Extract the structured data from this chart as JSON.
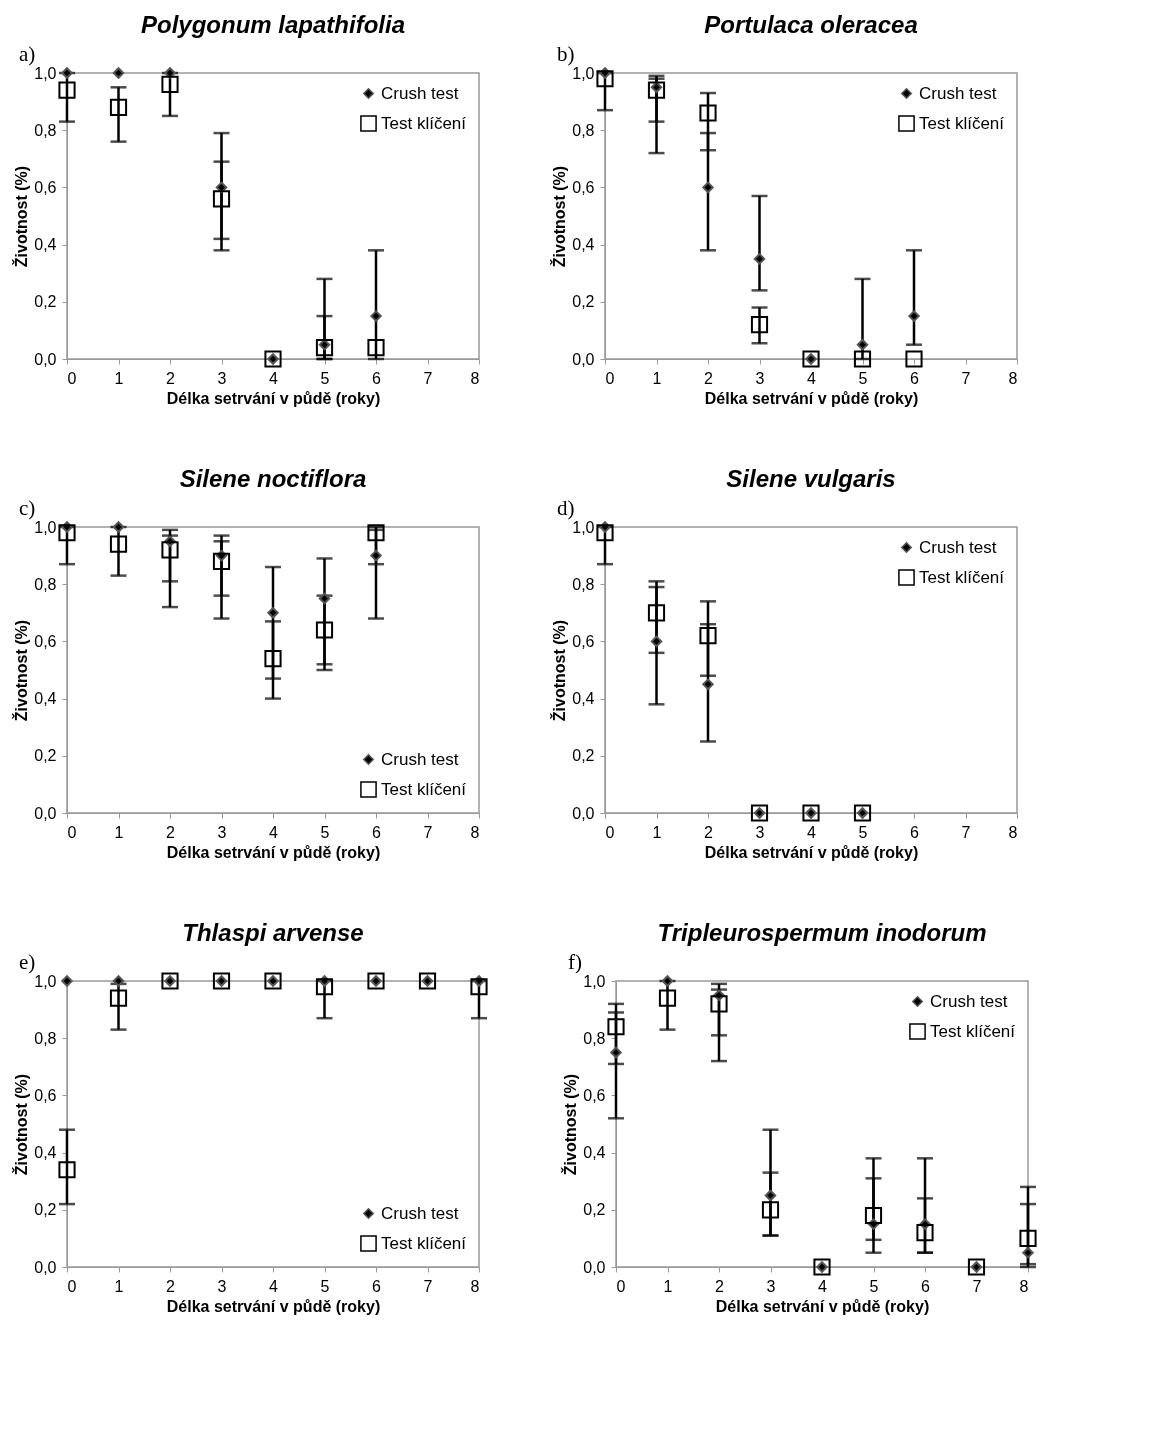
{
  "chart_data": [
    {
      "type": "scatter",
      "title": "Polygonum lapathifolia",
      "annotations": [
        "a)"
      ],
      "xlabel": "Délka setrvání v půdě (roky)",
      "ylabel": "Životnost (%)",
      "x": [
        0,
        1,
        2,
        3,
        4,
        5,
        6
      ],
      "xlim": [
        0,
        8
      ],
      "xticks": [
        0,
        1,
        2,
        3,
        4,
        5,
        6,
        7,
        8
      ],
      "ylim": [
        0,
        1
      ],
      "yticks": [
        {
          "value": 0,
          "label": "0,0"
        },
        {
          "value": 0.2,
          "label": "0,2"
        },
        {
          "value": 0.4,
          "label": "0,4"
        },
        {
          "value": 0.6,
          "label": "0,6"
        },
        {
          "value": 0.8,
          "label": "0,8"
        },
        {
          "value": 1,
          "label": "1,0"
        }
      ],
      "legend": "top right",
      "series": [
        {
          "name": "Crush test",
          "color": "#000000",
          "marker": "diamond",
          "values": [
            1.0,
            1.0,
            1.0,
            0.6,
            0.0,
            0.05,
            0.15
          ],
          "errors": [
            null,
            null,
            null,
            [
              0.38,
              0.79
            ],
            null,
            [
              0.0,
              0.28
            ],
            [
              0.0,
              0.38
            ]
          ]
        },
        {
          "name": "Test klíčení",
          "color": "#000000",
          "marker": "square",
          "values": [
            0.94,
            0.88,
            0.96,
            0.56,
            0.0,
            0.04,
            0.04
          ],
          "errors": [
            [
              0.83,
              1.0
            ],
            [
              0.76,
              0.95
            ],
            [
              0.85,
              1.0
            ],
            [
              0.42,
              0.69
            ],
            null,
            [
              0.0,
              0.15
            ],
            null
          ]
        }
      ]
    },
    {
      "type": "scatter",
      "title": "Portulaca oleracea",
      "annotations": [
        "b)"
      ],
      "xlabel": "Délka setrvání v půdě (roky)",
      "ylabel": "Životnost (%)",
      "x": [
        0,
        1,
        2,
        3,
        4,
        5,
        6
      ],
      "xlim": [
        0,
        8
      ],
      "xticks": [
        0,
        1,
        2,
        3,
        4,
        5,
        6,
        7,
        8
      ],
      "ylim": [
        0,
        1
      ],
      "yticks": [
        {
          "value": 0,
          "label": "0,0"
        },
        {
          "value": 0.2,
          "label": "0,2"
        },
        {
          "value": 0.4,
          "label": "0,4"
        },
        {
          "value": 0.6,
          "label": "0,6"
        },
        {
          "value": 0.8,
          "label": "0,8"
        },
        {
          "value": 1,
          "label": "1,0"
        }
      ],
      "legend": "top right",
      "series": [
        {
          "name": "Crush test",
          "color": "#000000",
          "marker": "diamond",
          "values": [
            1.0,
            0.95,
            0.6,
            0.35,
            0.0,
            0.05,
            0.15
          ],
          "errors": [
            null,
            [
              0.72,
              0.99
            ],
            [
              0.38,
              0.79
            ],
            [
              0.24,
              0.57
            ],
            null,
            [
              0.0,
              0.28
            ],
            [
              0.05,
              0.38
            ]
          ]
        },
        {
          "name": "Test klíčení",
          "color": "#000000",
          "marker": "square",
          "values": [
            0.98,
            0.94,
            0.86,
            0.12,
            0.0,
            0.0,
            0.0
          ],
          "errors": [
            [
              0.87,
              1.0
            ],
            [
              0.83,
              0.98
            ],
            [
              0.73,
              0.93
            ],
            [
              0.055,
              0.18
            ],
            null,
            null,
            null
          ]
        }
      ]
    },
    {
      "type": "scatter",
      "title": "Silene noctiflora",
      "annotations": [
        "c)"
      ],
      "xlabel": "Délka setrvání v půdě (roky)",
      "ylabel": "Životnost (%)",
      "x": [
        0,
        1,
        2,
        3,
        4,
        5,
        6
      ],
      "xlim": [
        0,
        8
      ],
      "xticks": [
        0,
        1,
        2,
        3,
        4,
        5,
        6,
        7,
        8
      ],
      "ylim": [
        0,
        1
      ],
      "yticks": [
        {
          "value": 0,
          "label": "0,0"
        },
        {
          "value": 0.2,
          "label": "0,2"
        },
        {
          "value": 0.4,
          "label": "0,4"
        },
        {
          "value": 0.6,
          "label": "0,6"
        },
        {
          "value": 0.8,
          "label": "0,8"
        },
        {
          "value": 1,
          "label": "1,0"
        }
      ],
      "legend": "bottom right",
      "series": [
        {
          "name": "Crush test",
          "color": "#000000",
          "marker": "diamond",
          "values": [
            1.0,
            1.0,
            0.95,
            0.9,
            0.7,
            0.75,
            0.9
          ],
          "errors": [
            null,
            null,
            [
              0.72,
              0.99
            ],
            [
              0.68,
              0.97
            ],
            [
              0.47,
              0.86
            ],
            [
              0.5,
              0.89
            ],
            [
              0.68,
              1.0
            ]
          ]
        },
        {
          "name": "Test klíčení",
          "color": "#000000",
          "marker": "square",
          "values": [
            0.98,
            0.94,
            0.92,
            0.88,
            0.54,
            0.64,
            0.98
          ],
          "errors": [
            [
              0.87,
              1.0
            ],
            [
              0.83,
              1.0
            ],
            [
              0.81,
              0.97
            ],
            [
              0.76,
              0.95
            ],
            [
              0.4,
              0.67
            ],
            [
              0.52,
              0.76
            ],
            [
              0.87,
              0.99
            ]
          ]
        }
      ]
    },
    {
      "type": "scatter",
      "title": "Silene vulgaris",
      "annotations": [
        "d)"
      ],
      "xlabel": "Délka setrvání v půdě (roky)",
      "ylabel": "Životnost (%)",
      "x": [
        0,
        1,
        2,
        3,
        4,
        5
      ],
      "xlim": [
        0,
        8
      ],
      "xticks": [
        0,
        1,
        2,
        3,
        4,
        5,
        6,
        7,
        8
      ],
      "ylim": [
        0,
        1
      ],
      "yticks": [
        {
          "value": 0,
          "label": "0,0"
        },
        {
          "value": 0.2,
          "label": "0,2"
        },
        {
          "value": 0.4,
          "label": "0,4"
        },
        {
          "value": 0.6,
          "label": "0,6"
        },
        {
          "value": 0.8,
          "label": "0,8"
        },
        {
          "value": 1,
          "label": "1,0"
        }
      ],
      "legend": "top right",
      "series": [
        {
          "name": "Crush test",
          "color": "#000000",
          "marker": "diamond",
          "values": [
            1.0,
            0.6,
            0.45,
            0.0,
            0.0,
            0.0
          ],
          "errors": [
            null,
            [
              0.38,
              0.81
            ],
            [
              0.25,
              0.66
            ],
            null,
            null,
            null
          ]
        },
        {
          "name": "Test klíčení",
          "color": "#000000",
          "marker": "square",
          "values": [
            0.98,
            0.7,
            0.62,
            0.0,
            0.0,
            0.0
          ],
          "errors": [
            [
              0.87,
              1.0
            ],
            [
              0.56,
              0.79
            ],
            [
              0.48,
              0.74
            ],
            null,
            null,
            null
          ]
        }
      ]
    },
    {
      "type": "scatter",
      "title": "Thlaspi arvense",
      "annotations": [
        "e)"
      ],
      "xlabel": "Délka setrvání v půdě (roky)",
      "ylabel": "Životnost (%)",
      "x": [
        0,
        1,
        2,
        3,
        4,
        5,
        6,
        7,
        8
      ],
      "xlim": [
        0,
        8
      ],
      "xticks": [
        0,
        1,
        2,
        3,
        4,
        5,
        6,
        7,
        8
      ],
      "ylim": [
        0,
        1
      ],
      "yticks": [
        {
          "value": 0,
          "label": "0,0"
        },
        {
          "value": 0.2,
          "label": "0,2"
        },
        {
          "value": 0.4,
          "label": "0,4"
        },
        {
          "value": 0.6,
          "label": "0,6"
        },
        {
          "value": 0.8,
          "label": "0,8"
        },
        {
          "value": 1,
          "label": "1,0"
        }
      ],
      "legend": "bottom right",
      "series": [
        {
          "name": "Crush test",
          "color": "#000000",
          "marker": "diamond",
          "values": [
            1.0,
            1.0,
            1.0,
            1.0,
            1.0,
            1.0,
            1.0,
            1.0,
            1.0
          ]
        },
        {
          "name": "Test klíčení",
          "color": "#000000",
          "marker": "square",
          "values": [
            0.34,
            0.94,
            1.0,
            1.0,
            1.0,
            0.98,
            1.0,
            1.0,
            0.98
          ],
          "errors": [
            [
              0.22,
              0.48
            ],
            [
              0.83,
              0.99
            ],
            null,
            null,
            null,
            [
              0.87,
              1.0
            ],
            null,
            null,
            [
              0.87,
              1.0
            ]
          ]
        }
      ]
    },
    {
      "type": "scatter",
      "title": "Tripleurospermum inodorum",
      "annotations": [
        "f)"
      ],
      "xlabel": "Délka setrvání v půdě (roky)",
      "ylabel": "Životnost (%)",
      "x": [
        0,
        1,
        2,
        3,
        4,
        5,
        6,
        7,
        8
      ],
      "xlim": [
        0,
        8
      ],
      "xticks": [
        0,
        1,
        2,
        3,
        4,
        5,
        6,
        7,
        8
      ],
      "ylim": [
        0,
        1
      ],
      "yticks": [
        {
          "value": 0,
          "label": "0,0"
        },
        {
          "value": 0.2,
          "label": "0,2"
        },
        {
          "value": 0.4,
          "label": "0,4"
        },
        {
          "value": 0.6,
          "label": "0,6"
        },
        {
          "value": 0.8,
          "label": "0,8"
        },
        {
          "value": 1,
          "label": "1,0"
        }
      ],
      "legend": "top right",
      "series": [
        {
          "name": "Crush test",
          "color": "#000000",
          "marker": "diamond",
          "values": [
            0.75,
            1.0,
            0.95,
            0.25,
            0.0,
            0.15,
            0.15,
            0.0,
            0.05
          ],
          "errors": [
            [
              0.52,
              0.89
            ],
            null,
            [
              0.72,
              0.99
            ],
            [
              0.11,
              0.48
            ],
            null,
            [
              0.05,
              0.38
            ],
            [
              0.05,
              0.38
            ],
            null,
            [
              0.01,
              0.28
            ]
          ]
        },
        {
          "name": "Test klíčení",
          "color": "#000000",
          "marker": "square",
          "values": [
            0.84,
            0.94,
            0.92,
            0.2,
            0.0,
            0.18,
            0.12,
            0.0,
            0.1
          ],
          "errors": [
            [
              0.71,
              0.92
            ],
            [
              0.83,
              1.0
            ],
            [
              0.81,
              0.97
            ],
            [
              0.11,
              0.33
            ],
            null,
            [
              0.095,
              0.31
            ],
            [
              0.05,
              0.24
            ],
            null,
            [
              0.0,
              0.22
            ]
          ]
        }
      ]
    }
  ]
}
